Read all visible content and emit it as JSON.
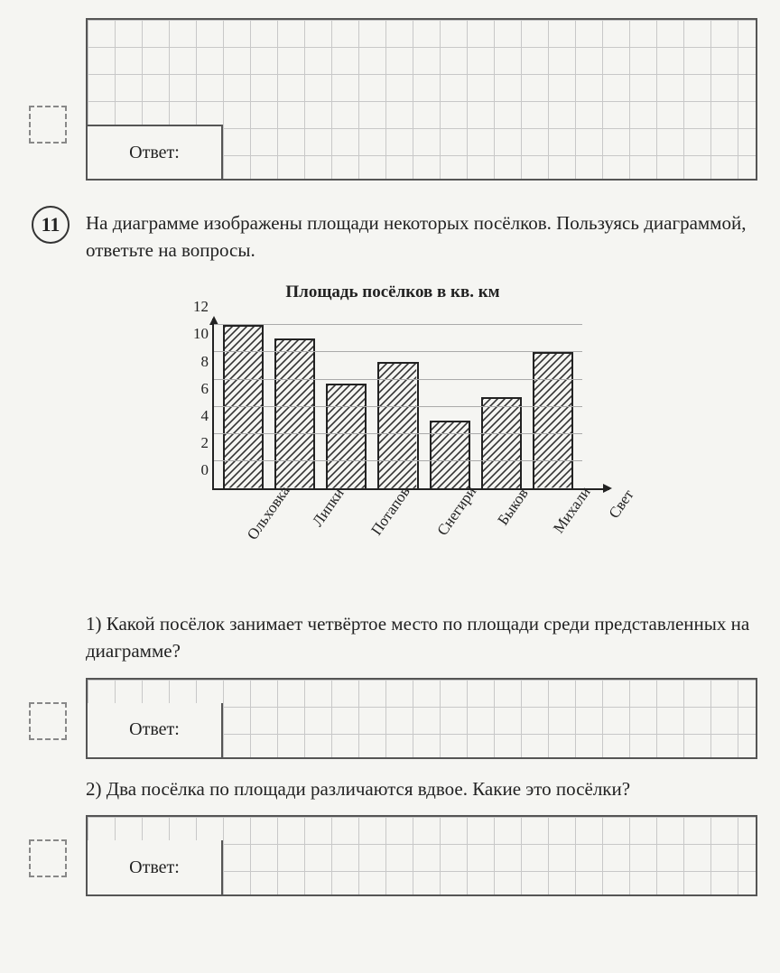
{
  "answer_label": "Ответ:",
  "question_number": "11",
  "question_text": "На диаграмме изображены площади некоторых посёлков. Пользуясь диаграммой, ответьте на вопросы.",
  "chart": {
    "type": "bar",
    "title": "Площадь посёлков в кв. км",
    "categories": [
      "Ольховка",
      "Липки",
      "Потапов",
      "Снегири",
      "Быков",
      "Михали",
      "Свет"
    ],
    "values": [
      12,
      11,
      7.7,
      9.3,
      5,
      6.7,
      10
    ],
    "ylim_max": 12.5,
    "yticks": [
      0,
      2,
      4,
      6,
      8,
      10,
      12
    ],
    "bar_border_color": "#222222",
    "hatch_color": "#333333",
    "axis_color": "#222222",
    "grid_color": "#aaaaaa",
    "background_color": "#f5f5f2",
    "title_fontsize": 19,
    "tick_fontsize": 17,
    "label_fontsize": 17
  },
  "subquestions": {
    "q1": "1) Какой посёлок занимает четвёртое место по площади среди представленных на диаграмме?",
    "q2": "2) Два посёлка по площади различаются вдвое. Какие это посёлки?"
  }
}
